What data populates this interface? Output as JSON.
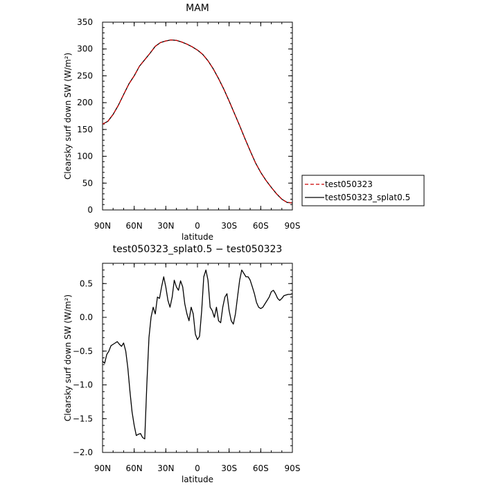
{
  "chart_data": [
    {
      "type": "line",
      "title": "MAM",
      "xlabel": "latitude",
      "ylabel": "Clearsky surf down SW (W/m²)",
      "xlim": [
        90,
        -90
      ],
      "ylim": [
        0,
        350
      ],
      "xticks": [
        90,
        60,
        30,
        0,
        -30,
        -60,
        -90
      ],
      "xtick_labels": [
        "90N",
        "60N",
        "30N",
        "0",
        "30S",
        "60S",
        "90S"
      ],
      "yticks": [
        0,
        50,
        100,
        150,
        200,
        250,
        300,
        350
      ],
      "ytick_labels": [
        "0",
        "50",
        "100",
        "150",
        "200",
        "250",
        "300",
        "350"
      ],
      "legend": "outside-right",
      "series": [
        {
          "name": "test050323",
          "color": "#cc0000",
          "style": "dashed",
          "x": [
            90,
            85,
            80,
            75,
            70,
            65,
            60,
            55,
            50,
            45,
            40,
            35,
            30,
            25,
            20,
            15,
            10,
            5,
            0,
            -5,
            -10,
            -15,
            -20,
            -25,
            -30,
            -35,
            -40,
            -45,
            -50,
            -55,
            -60,
            -65,
            -70,
            -75,
            -80,
            -85,
            -90
          ],
          "y": [
            160,
            165,
            178,
            195,
            215,
            235,
            250,
            268,
            280,
            292,
            305,
            312,
            315,
            317,
            316,
            313,
            309,
            304,
            298,
            290,
            278,
            263,
            245,
            225,
            203,
            180,
            157,
            133,
            110,
            88,
            70,
            55,
            42,
            30,
            20,
            14,
            13
          ]
        },
        {
          "name": "test050323_splat0.5",
          "color": "#000000",
          "style": "solid",
          "x": [
            90,
            85,
            80,
            75,
            70,
            65,
            60,
            55,
            50,
            45,
            40,
            35,
            30,
            25,
            20,
            15,
            10,
            5,
            0,
            -5,
            -10,
            -15,
            -20,
            -25,
            -30,
            -35,
            -40,
            -45,
            -50,
            -55,
            -60,
            -65,
            -70,
            -75,
            -80,
            -85,
            -90
          ],
          "y": [
            160,
            165,
            178,
            195,
            215,
            235,
            250,
            268,
            280,
            292,
            305,
            312,
            315,
            317,
            316,
            313,
            309,
            304,
            298,
            290,
            278,
            263,
            245,
            225,
            203,
            180,
            157,
            133,
            110,
            88,
            70,
            55,
            42,
            30,
            20,
            14,
            13
          ]
        }
      ]
    },
    {
      "type": "line",
      "title": "test050323_splat0.5 − test050323",
      "xlabel": "latitude",
      "ylabel": "Clearsky surf down SW (W/m²)",
      "xlim": [
        90,
        -90
      ],
      "ylim": [
        -2.0,
        0.8
      ],
      "xticks": [
        90,
        60,
        30,
        0,
        -30,
        -60,
        -90
      ],
      "xtick_labels": [
        "90N",
        "60N",
        "30N",
        "0",
        "30S",
        "60S",
        "90S"
      ],
      "yticks": [
        -2.0,
        -1.5,
        -1.0,
        -0.5,
        0.0,
        0.5
      ],
      "ytick_labels": [
        "−2.0",
        "−1.5",
        "−1.0",
        "−0.5",
        "0.0",
        "0.5"
      ],
      "series": [
        {
          "color": "#000000",
          "style": "solid",
          "x": [
            90,
            88,
            86,
            84,
            82,
            80,
            78,
            76,
            74,
            72,
            70,
            68,
            66,
            64,
            62,
            60,
            58,
            56,
            54,
            52,
            50,
            48,
            46,
            44,
            42,
            40,
            38,
            36,
            34,
            32,
            30,
            28,
            26,
            24,
            22,
            20,
            18,
            16,
            14,
            12,
            10,
            8,
            6,
            4,
            2,
            0,
            -2,
            -4,
            -6,
            -8,
            -10,
            -12,
            -14,
            -16,
            -18,
            -20,
            -22,
            -24,
            -26,
            -28,
            -30,
            -32,
            -34,
            -36,
            -38,
            -40,
            -42,
            -44,
            -46,
            -48,
            -50,
            -52,
            -54,
            -56,
            -58,
            -60,
            -62,
            -64,
            -66,
            -68,
            -70,
            -72,
            -74,
            -76,
            -78,
            -80,
            -82,
            -84,
            -86,
            -88,
            -90
          ],
          "y": [
            -0.65,
            -0.68,
            -0.55,
            -0.5,
            -0.42,
            -0.4,
            -0.38,
            -0.36,
            -0.4,
            -0.43,
            -0.38,
            -0.5,
            -0.75,
            -1.1,
            -1.4,
            -1.6,
            -1.75,
            -1.73,
            -1.72,
            -1.78,
            -1.8,
            -1.0,
            -0.3,
            0.0,
            0.15,
            0.05,
            0.3,
            0.28,
            0.45,
            0.6,
            0.45,
            0.25,
            0.15,
            0.3,
            0.55,
            0.45,
            0.4,
            0.54,
            0.45,
            0.2,
            0.05,
            -0.05,
            0.15,
            0.05,
            -0.25,
            -0.33,
            -0.28,
            0.1,
            0.6,
            0.7,
            0.55,
            0.15,
            0.1,
            0.0,
            0.15,
            -0.05,
            -0.08,
            0.15,
            0.3,
            0.35,
            0.1,
            -0.05,
            -0.1,
            0.05,
            0.3,
            0.55,
            0.7,
            0.65,
            0.6,
            0.6,
            0.55,
            0.45,
            0.35,
            0.22,
            0.15,
            0.13,
            0.15,
            0.2,
            0.25,
            0.3,
            0.38,
            0.4,
            0.35,
            0.28,
            0.25,
            0.28,
            0.32,
            0.33,
            0.34,
            0.34,
            0.35
          ]
        }
      ]
    }
  ]
}
